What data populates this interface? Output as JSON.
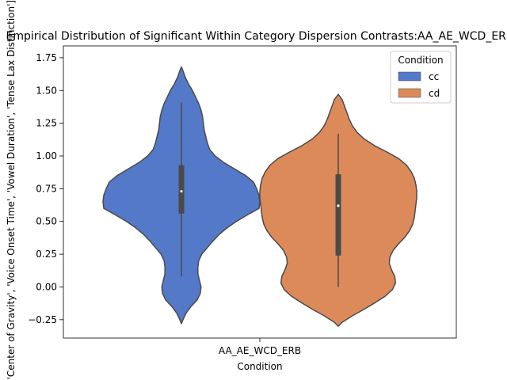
{
  "chart_data": {
    "type": "violin",
    "title": "Empirical Distribution of Significant Within Category Dispersion Contrasts:AA_AE_WCD_ERB",
    "xlabel": "Condition",
    "ylabel": "['Center of Gravity', 'Voice Onset Time', 'Vowel Duration', 'Tense Lax Distinction']",
    "categories": [
      "AA_AE_WCD_ERB"
    ],
    "ylim": [
      -0.39,
      1.84
    ],
    "yticks": [
      -0.25,
      0.0,
      0.25,
      0.5,
      0.75,
      1.0,
      1.25,
      1.5,
      1.75
    ],
    "ytick_labels": [
      "−0.25",
      "0.00",
      "0.25",
      "0.50",
      "0.75",
      "1.00",
      "1.25",
      "1.50",
      "1.75"
    ],
    "grid": false,
    "legend": {
      "title": "Condition",
      "placement": "top-right"
    },
    "series": [
      {
        "name": "cc",
        "color": "#5479c8",
        "min": 0.08,
        "q1": 0.56,
        "median": 0.73,
        "q3": 0.93,
        "max": 1.41,
        "kde_extent": [
          -0.28,
          1.68
        ],
        "density": [
          [
            -0.28,
            0.0
          ],
          [
            -0.25,
            0.02
          ],
          [
            -0.2,
            0.06
          ],
          [
            -0.15,
            0.12
          ],
          [
            -0.1,
            0.2
          ],
          [
            -0.05,
            0.24
          ],
          [
            0.0,
            0.25
          ],
          [
            0.05,
            0.23
          ],
          [
            0.1,
            0.21
          ],
          [
            0.15,
            0.21
          ],
          [
            0.2,
            0.22
          ],
          [
            0.25,
            0.26
          ],
          [
            0.3,
            0.33
          ],
          [
            0.35,
            0.4
          ],
          [
            0.4,
            0.48
          ],
          [
            0.45,
            0.58
          ],
          [
            0.5,
            0.7
          ],
          [
            0.55,
            0.84
          ],
          [
            0.6,
            0.99
          ],
          [
            0.65,
            1.0
          ],
          [
            0.7,
            0.99
          ],
          [
            0.75,
            0.96
          ],
          [
            0.8,
            0.92
          ],
          [
            0.85,
            0.82
          ],
          [
            0.9,
            0.68
          ],
          [
            0.95,
            0.54
          ],
          [
            1.0,
            0.43
          ],
          [
            1.05,
            0.36
          ],
          [
            1.1,
            0.33
          ],
          [
            1.15,
            0.31
          ],
          [
            1.2,
            0.29
          ],
          [
            1.25,
            0.28
          ],
          [
            1.3,
            0.27
          ],
          [
            1.35,
            0.25
          ],
          [
            1.4,
            0.22
          ],
          [
            1.45,
            0.18
          ],
          [
            1.5,
            0.14
          ],
          [
            1.55,
            0.09
          ],
          [
            1.6,
            0.05
          ],
          [
            1.65,
            0.02
          ],
          [
            1.68,
            0.0
          ]
        ]
      },
      {
        "name": "cd",
        "color": "#dd8a5b",
        "min": 0.0,
        "q1": 0.24,
        "median": 0.62,
        "q3": 0.86,
        "max": 1.17,
        "kde_extent": [
          -0.3,
          1.47
        ],
        "density": [
          [
            -0.3,
            0.0
          ],
          [
            -0.27,
            0.05
          ],
          [
            -0.22,
            0.18
          ],
          [
            -0.17,
            0.33
          ],
          [
            -0.12,
            0.47
          ],
          [
            -0.07,
            0.6
          ],
          [
            -0.02,
            0.69
          ],
          [
            0.03,
            0.73
          ],
          [
            0.08,
            0.72
          ],
          [
            0.13,
            0.68
          ],
          [
            0.18,
            0.65
          ],
          [
            0.23,
            0.66
          ],
          [
            0.28,
            0.7
          ],
          [
            0.33,
            0.77
          ],
          [
            0.38,
            0.85
          ],
          [
            0.43,
            0.91
          ],
          [
            0.48,
            0.95
          ],
          [
            0.53,
            0.97
          ],
          [
            0.58,
            0.98
          ],
          [
            0.63,
            0.99
          ],
          [
            0.68,
            1.0
          ],
          [
            0.73,
            1.0
          ],
          [
            0.78,
            0.99
          ],
          [
            0.83,
            0.97
          ],
          [
            0.88,
            0.93
          ],
          [
            0.93,
            0.87
          ],
          [
            0.98,
            0.77
          ],
          [
            1.03,
            0.62
          ],
          [
            1.08,
            0.46
          ],
          [
            1.13,
            0.33
          ],
          [
            1.18,
            0.24
          ],
          [
            1.23,
            0.18
          ],
          [
            1.28,
            0.14
          ],
          [
            1.33,
            0.11
          ],
          [
            1.38,
            0.08
          ],
          [
            1.43,
            0.05
          ],
          [
            1.47,
            0.0
          ]
        ]
      }
    ]
  }
}
